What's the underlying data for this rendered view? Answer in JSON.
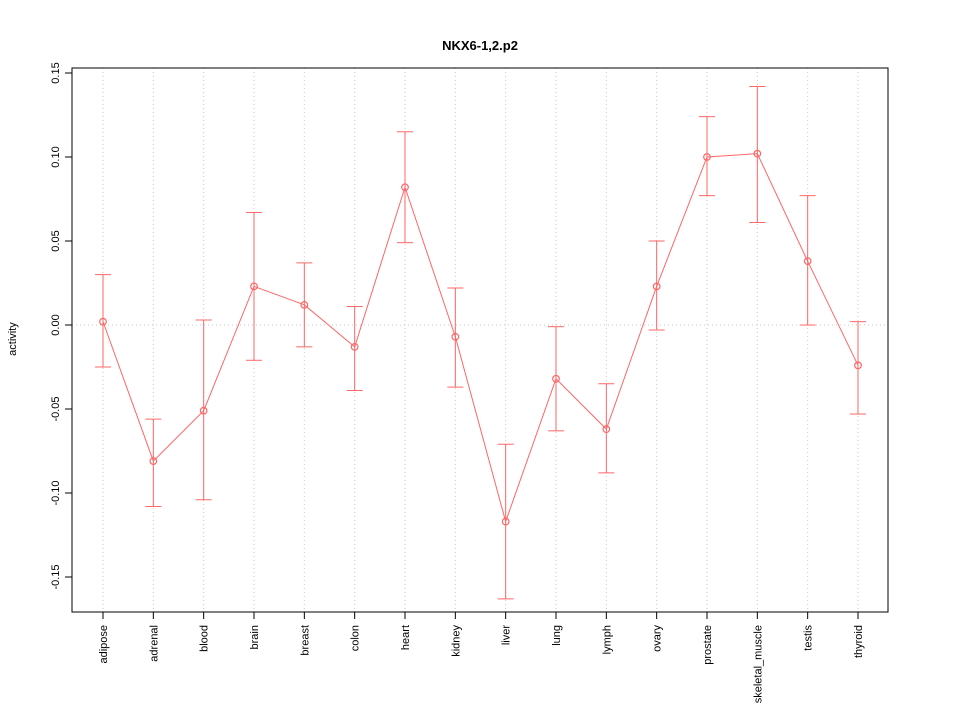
{
  "chart_data": {
    "type": "line",
    "title": "NKX6-1,2.p2",
    "xlabel": "",
    "ylabel": "activity",
    "ylim": [
      -0.17,
      0.155
    ],
    "yticks": [
      -0.15,
      -0.1,
      -0.05,
      0.0,
      0.05,
      0.1,
      0.15
    ],
    "grid": true,
    "legend": "none",
    "categories": [
      "adipose",
      "adrenal",
      "blood",
      "brain",
      "breast",
      "colon",
      "heart",
      "kidney",
      "liver",
      "lung",
      "lymph",
      "ovary",
      "prostate",
      "skeletal_muscle",
      "testis",
      "thyroid"
    ],
    "series": [
      {
        "name": "activity",
        "values": [
          0.002,
          -0.081,
          -0.051,
          0.023,
          0.012,
          -0.013,
          0.082,
          -0.007,
          -0.117,
          -0.032,
          -0.062,
          0.023,
          0.1,
          0.102,
          0.038,
          -0.024
        ],
        "lower": [
          -0.025,
          -0.108,
          -0.104,
          -0.021,
          -0.013,
          -0.039,
          0.049,
          -0.037,
          -0.163,
          -0.063,
          -0.088,
          -0.003,
          0.077,
          0.061,
          0.0,
          -0.053
        ],
        "upper": [
          0.03,
          -0.056,
          0.003,
          0.067,
          0.037,
          0.011,
          0.115,
          0.022,
          -0.071,
          -0.001,
          -0.035,
          0.05,
          0.124,
          0.142,
          0.077,
          0.002
        ]
      }
    ],
    "colors": {
      "line": "#ff6666",
      "grid": "#c8c8c8",
      "axis": "#000000",
      "background": "#ffffff"
    }
  }
}
